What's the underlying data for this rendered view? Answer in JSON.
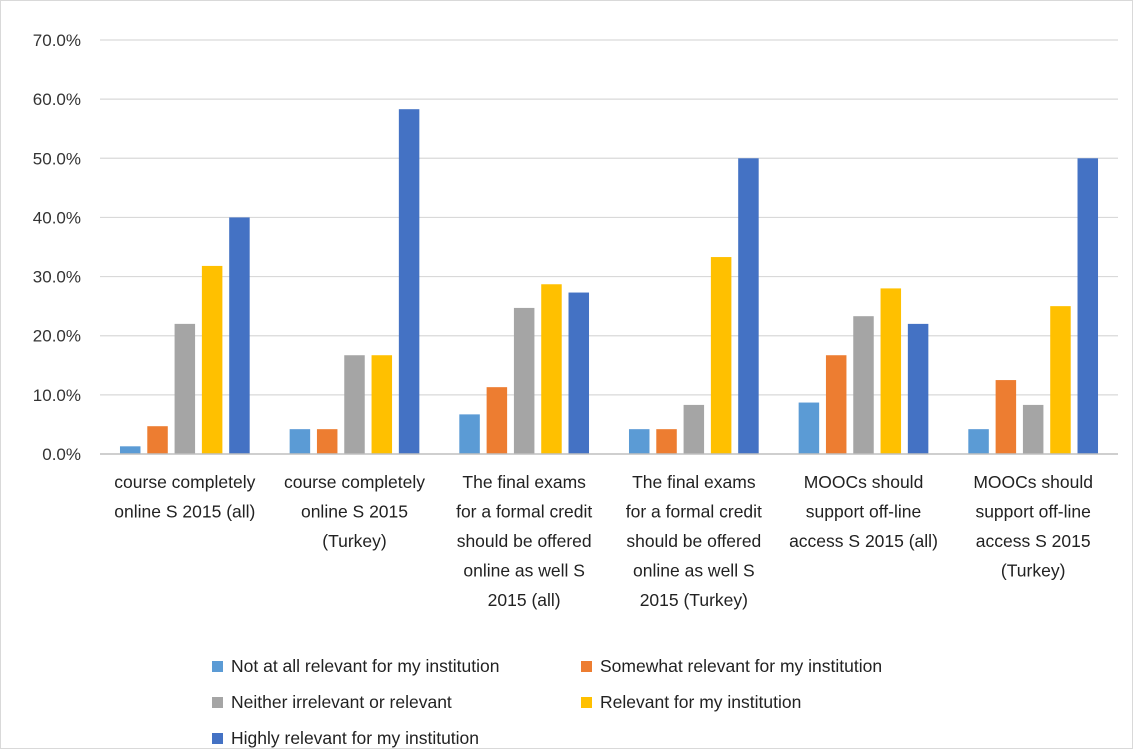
{
  "chart_data": {
    "type": "bar",
    "categories": [
      [
        "course completely",
        "online S 2015 (all)"
      ],
      [
        "course completely",
        "online S 2015",
        "(Turkey)"
      ],
      [
        "The final exams",
        "for a formal credit",
        "should be offered",
        "online as well S",
        "2015 (all)"
      ],
      [
        "The final exams",
        "for a formal credit",
        "should be offered",
        "online as well S",
        "2015 (Turkey)"
      ],
      [
        "MOOCs should",
        "support off-line",
        "access S 2015 (all)"
      ],
      [
        "MOOCs should",
        "support off-line",
        "access S 2015",
        "(Turkey)"
      ]
    ],
    "series": [
      {
        "name": "Not at all relevant for my institution",
        "color": "#5b9bd5",
        "values": [
          1.3,
          4.2,
          6.7,
          4.2,
          8.7,
          4.2
        ]
      },
      {
        "name": "Somewhat relevant for my institution",
        "color": "#ed7d31",
        "values": [
          4.7,
          4.2,
          11.3,
          4.2,
          16.7,
          12.5
        ]
      },
      {
        "name": "Neither irrelevant or relevant",
        "color": "#a5a5a5",
        "values": [
          22.0,
          16.7,
          24.7,
          8.3,
          23.3,
          8.3
        ]
      },
      {
        "name": "Relevant for my institution",
        "color": "#ffc000",
        "values": [
          31.8,
          16.7,
          28.7,
          33.3,
          28.0,
          25.0
        ]
      },
      {
        "name": "Highly relevant for my institution",
        "color": "#4472c4",
        "values": [
          40.0,
          58.3,
          27.3,
          50.0,
          22.0,
          50.0
        ]
      }
    ],
    "yticks": [
      "0.0%",
      "10.0%",
      "20.0%",
      "30.0%",
      "40.0%",
      "50.0%",
      "60.0%",
      "70.0%"
    ],
    "ylim": [
      0,
      70
    ],
    "grid": true,
    "legend_position": "bottom"
  }
}
